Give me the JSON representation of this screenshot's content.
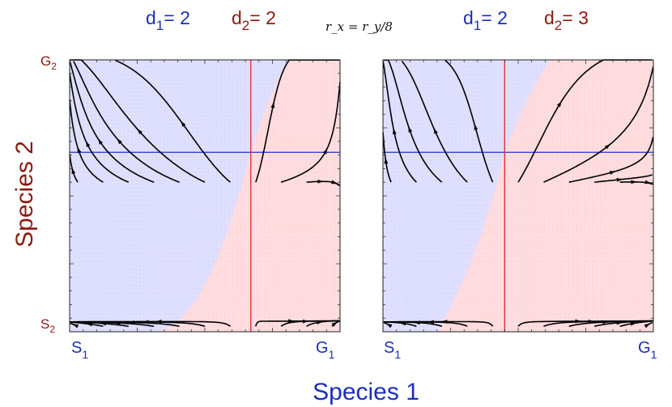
{
  "colors": {
    "species1_blue": "#1c2fb6",
    "species2_red": "#8b1a10",
    "region_blue": "#dcdcff",
    "region_red": "#ffd9dc",
    "nullcline_blue": "#2233cc",
    "nullcline_red": "#e8232c",
    "arrow": "#000000"
  },
  "x_axis_title": "Species 1",
  "y_axis_title": "Species 2",
  "equation": "r_x = r_y/8",
  "panels": [
    {
      "d1_label": "d",
      "d1_sub": "1",
      "d1_value": "= 2",
      "d2_label": "d",
      "d2_sub": "2",
      "d2_value": "= 2",
      "d1": 2,
      "d2": 2,
      "x_start_label": "S",
      "x_start_sub": "1",
      "x_end_label": "G",
      "x_end_sub": "1",
      "y_start_label": "S",
      "y_start_sub": "2",
      "y_end_label": "G",
      "y_end_sub": "2",
      "vertical_nullcline_x": 0.67,
      "horizontal_nullcline_y": 0.66
    },
    {
      "d1_label": "d",
      "d1_sub": "1",
      "d1_value": "= 2",
      "d2_label": "d",
      "d2_sub": "2",
      "d2_value": "= 3",
      "d1": 2,
      "d2": 3,
      "x_start_label": "S",
      "x_start_sub": "1",
      "x_end_label": "G",
      "x_end_sub": "1",
      "vertical_nullcline_x": 0.45,
      "horizontal_nullcline_y": 0.66
    }
  ]
}
